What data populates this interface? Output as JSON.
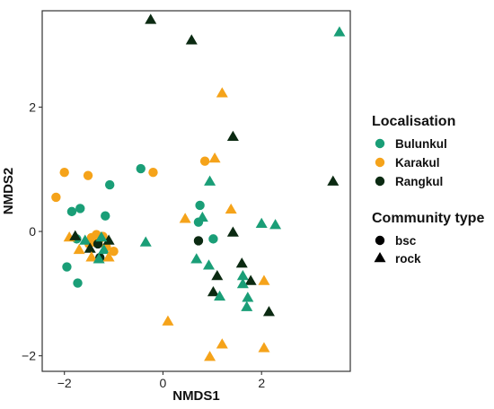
{
  "chart_data": {
    "type": "scatter",
    "xlabel": "NMDS1",
    "ylabel": "NMDS2",
    "xlim": [
      -2.45,
      3.8
    ],
    "ylim": [
      -2.25,
      3.55
    ],
    "xticks": [
      -2,
      0,
      2
    ],
    "yticks": [
      -2,
      0,
      2
    ],
    "grid": false,
    "legend_placement": "right",
    "legends": [
      {
        "title": "Localisation",
        "entries": [
          {
            "label": "Bulunkul",
            "color": "#1a9e77"
          },
          {
            "label": "Karakul",
            "color": "#f5a31a"
          },
          {
            "label": "Rangkul",
            "color": "#0b2a12"
          }
        ]
      },
      {
        "title": "Community type",
        "entries": [
          {
            "label": "bsc",
            "shape": "circle"
          },
          {
            "label": "rock",
            "shape": "triangle"
          }
        ]
      }
    ],
    "colors": {
      "Bulunkul": "#1a9e77",
      "Karakul": "#f5a31a",
      "Rangkul": "#0b2a12"
    },
    "points": [
      {
        "x": -2.17,
        "y": 0.55,
        "loc": "Karakul",
        "type": "bsc"
      },
      {
        "x": -2.0,
        "y": 0.95,
        "loc": "Karakul",
        "type": "bsc"
      },
      {
        "x": -1.52,
        "y": 0.9,
        "loc": "Karakul",
        "type": "bsc"
      },
      {
        "x": -1.85,
        "y": 0.32,
        "loc": "Bulunkul",
        "type": "bsc"
      },
      {
        "x": -1.68,
        "y": 0.37,
        "loc": "Bulunkul",
        "type": "bsc"
      },
      {
        "x": -1.08,
        "y": 0.75,
        "loc": "Bulunkul",
        "type": "bsc"
      },
      {
        "x": -1.17,
        "y": 0.25,
        "loc": "Bulunkul",
        "type": "bsc"
      },
      {
        "x": -0.45,
        "y": 1.01,
        "loc": "Bulunkul",
        "type": "bsc"
      },
      {
        "x": -0.2,
        "y": 0.95,
        "loc": "Karakul",
        "type": "bsc"
      },
      {
        "x": -1.95,
        "y": -0.57,
        "loc": "Bulunkul",
        "type": "bsc"
      },
      {
        "x": -1.73,
        "y": -0.83,
        "loc": "Bulunkul",
        "type": "bsc"
      },
      {
        "x": -1.75,
        "y": -0.12,
        "loc": "Bulunkul",
        "type": "bsc"
      },
      {
        "x": -1.45,
        "y": -0.1,
        "loc": "Karakul",
        "type": "bsc"
      },
      {
        "x": -1.4,
        "y": -0.17,
        "loc": "Karakul",
        "type": "bsc"
      },
      {
        "x": -1.35,
        "y": -0.05,
        "loc": "Karakul",
        "type": "bsc"
      },
      {
        "x": -1.28,
        "y": -0.12,
        "loc": "Karakul",
        "type": "bsc"
      },
      {
        "x": -1.22,
        "y": -0.08,
        "loc": "Karakul",
        "type": "bsc"
      },
      {
        "x": -1.5,
        "y": -0.2,
        "loc": "Karakul",
        "type": "bsc"
      },
      {
        "x": -1.15,
        "y": -0.25,
        "loc": "Karakul",
        "type": "bsc"
      },
      {
        "x": -1.0,
        "y": -0.32,
        "loc": "Karakul",
        "type": "bsc"
      },
      {
        "x": -1.32,
        "y": -0.2,
        "loc": "Rangkul",
        "type": "bsc"
      },
      {
        "x": -1.28,
        "y": -0.42,
        "loc": "Rangkul",
        "type": "bsc"
      },
      {
        "x": 0.85,
        "y": 1.13,
        "loc": "Karakul",
        "type": "bsc"
      },
      {
        "x": 0.75,
        "y": 0.42,
        "loc": "Bulunkul",
        "type": "bsc"
      },
      {
        "x": 0.72,
        "y": 0.15,
        "loc": "Bulunkul",
        "type": "bsc"
      },
      {
        "x": 1.02,
        "y": -0.12,
        "loc": "Bulunkul",
        "type": "bsc"
      },
      {
        "x": 0.72,
        "y": -0.15,
        "loc": "Rangkul",
        "type": "bsc"
      },
      {
        "x": -0.25,
        "y": 3.4,
        "loc": "Rangkul",
        "type": "rock"
      },
      {
        "x": 0.58,
        "y": 3.07,
        "loc": "Rangkul",
        "type": "rock"
      },
      {
        "x": 3.58,
        "y": 3.2,
        "loc": "Bulunkul",
        "type": "rock"
      },
      {
        "x": 1.2,
        "y": 2.22,
        "loc": "Karakul",
        "type": "rock"
      },
      {
        "x": 1.42,
        "y": 1.52,
        "loc": "Rangkul",
        "type": "rock"
      },
      {
        "x": 1.05,
        "y": 1.17,
        "loc": "Karakul",
        "type": "rock"
      },
      {
        "x": 3.45,
        "y": 0.8,
        "loc": "Rangkul",
        "type": "rock"
      },
      {
        "x": 0.95,
        "y": 0.8,
        "loc": "Bulunkul",
        "type": "rock"
      },
      {
        "x": 1.38,
        "y": 0.35,
        "loc": "Karakul",
        "type": "rock"
      },
      {
        "x": 0.45,
        "y": 0.2,
        "loc": "Karakul",
        "type": "rock"
      },
      {
        "x": 0.8,
        "y": 0.22,
        "loc": "Bulunkul",
        "type": "rock"
      },
      {
        "x": 2.0,
        "y": 0.12,
        "loc": "Bulunkul",
        "type": "rock"
      },
      {
        "x": 2.28,
        "y": 0.1,
        "loc": "Bulunkul",
        "type": "rock"
      },
      {
        "x": 1.42,
        "y": -0.02,
        "loc": "Rangkul",
        "type": "rock"
      },
      {
        "x": -1.9,
        "y": -0.1,
        "loc": "Karakul",
        "type": "rock"
      },
      {
        "x": -1.78,
        "y": -0.08,
        "loc": "Rangkul",
        "type": "rock"
      },
      {
        "x": -1.7,
        "y": -0.3,
        "loc": "Karakul",
        "type": "rock"
      },
      {
        "x": -1.58,
        "y": -0.15,
        "loc": "Bulunkul",
        "type": "rock"
      },
      {
        "x": -1.48,
        "y": -0.28,
        "loc": "Rangkul",
        "type": "rock"
      },
      {
        "x": -1.45,
        "y": -0.42,
        "loc": "Karakul",
        "type": "rock"
      },
      {
        "x": -1.3,
        "y": -0.45,
        "loc": "Bulunkul",
        "type": "rock"
      },
      {
        "x": -1.2,
        "y": -0.3,
        "loc": "Bulunkul",
        "type": "rock"
      },
      {
        "x": -1.1,
        "y": -0.42,
        "loc": "Karakul",
        "type": "rock"
      },
      {
        "x": -1.1,
        "y": -0.15,
        "loc": "Rangkul",
        "type": "rock"
      },
      {
        "x": -1.25,
        "y": -0.1,
        "loc": "Bulunkul",
        "type": "rock"
      },
      {
        "x": -0.35,
        "y": -0.18,
        "loc": "Bulunkul",
        "type": "rock"
      },
      {
        "x": 0.68,
        "y": -0.45,
        "loc": "Bulunkul",
        "type": "rock"
      },
      {
        "x": 0.93,
        "y": -0.55,
        "loc": "Bulunkul",
        "type": "rock"
      },
      {
        "x": 1.1,
        "y": -0.72,
        "loc": "Rangkul",
        "type": "rock"
      },
      {
        "x": 1.02,
        "y": -0.98,
        "loc": "Rangkul",
        "type": "rock"
      },
      {
        "x": 1.15,
        "y": -1.05,
        "loc": "Bulunkul",
        "type": "rock"
      },
      {
        "x": 1.6,
        "y": -0.52,
        "loc": "Rangkul",
        "type": "rock"
      },
      {
        "x": 1.62,
        "y": -0.72,
        "loc": "Bulunkul",
        "type": "rock"
      },
      {
        "x": 1.78,
        "y": -0.8,
        "loc": "Rangkul",
        "type": "rock"
      },
      {
        "x": 2.05,
        "y": -0.8,
        "loc": "Karakul",
        "type": "rock"
      },
      {
        "x": 1.62,
        "y": -0.85,
        "loc": "Bulunkul",
        "type": "rock"
      },
      {
        "x": 1.72,
        "y": -1.07,
        "loc": "Bulunkul",
        "type": "rock"
      },
      {
        "x": 1.7,
        "y": -1.22,
        "loc": "Bulunkul",
        "type": "rock"
      },
      {
        "x": 2.15,
        "y": -1.3,
        "loc": "Rangkul",
        "type": "rock"
      },
      {
        "x": 0.1,
        "y": -1.45,
        "loc": "Karakul",
        "type": "rock"
      },
      {
        "x": 1.2,
        "y": -1.82,
        "loc": "Karakul",
        "type": "rock"
      },
      {
        "x": 0.95,
        "y": -2.02,
        "loc": "Karakul",
        "type": "rock"
      },
      {
        "x": 2.05,
        "y": -1.88,
        "loc": "Karakul",
        "type": "rock"
      }
    ]
  }
}
